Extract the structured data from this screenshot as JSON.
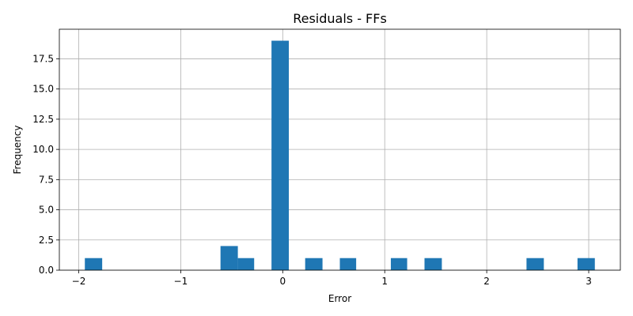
{
  "chart_data": {
    "type": "histogram",
    "title": "Residuals - FFs",
    "xlabel": "Error",
    "ylabel": "Frequency",
    "xlim": [
      -2.19,
      3.31
    ],
    "ylim": [
      0,
      19.95
    ],
    "xticks": [
      -2,
      -1,
      0,
      1,
      2,
      3
    ],
    "xtick_labels": [
      "−2",
      "−1",
      "0",
      "1",
      "2",
      "3"
    ],
    "yticks": [
      0,
      2.5,
      5,
      7.5,
      10,
      12.5,
      15,
      17.5
    ],
    "ytick_labels": [
      "0.0",
      "2.5",
      "5.0",
      "7.5",
      "10.0",
      "12.5",
      "15.0",
      "17.5"
    ],
    "grid": true,
    "bar_color": "#1f77b4",
    "bins": [
      {
        "start": -1.94,
        "end": -1.77,
        "count": 1
      },
      {
        "start": -0.61,
        "end": -0.44,
        "count": 2
      },
      {
        "start": -0.44,
        "end": -0.28,
        "count": 1
      },
      {
        "start": -0.11,
        "end": 0.06,
        "count": 19
      },
      {
        "start": 0.22,
        "end": 0.39,
        "count": 1
      },
      {
        "start": 0.56,
        "end": 0.72,
        "count": 1
      },
      {
        "start": 1.06,
        "end": 1.22,
        "count": 1
      },
      {
        "start": 1.39,
        "end": 1.56,
        "count": 1
      },
      {
        "start": 2.39,
        "end": 2.56,
        "count": 1
      },
      {
        "start": 2.89,
        "end": 3.06,
        "count": 1
      }
    ]
  }
}
